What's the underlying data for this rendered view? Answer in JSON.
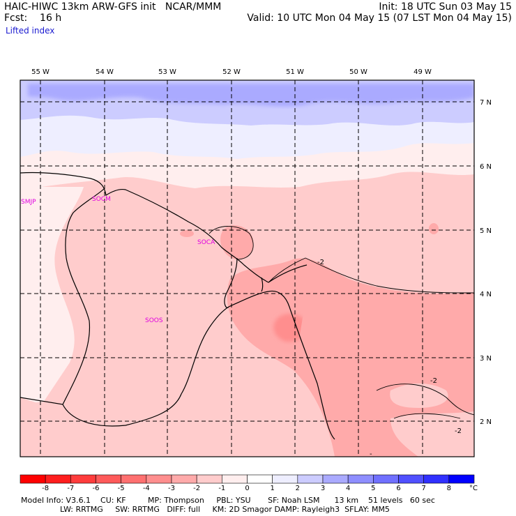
{
  "header": {
    "model_line": "HAIC-HIWC 13km ARW-GFS init   NCAR/MMM",
    "fcst_line": "Fcst:    16 h",
    "field_name": "Lifted index",
    "init_line": "Init: 18 UTC Sun 03 May 15",
    "valid_line": "Valid: 10 UTC Mon 04 May 15 (07 LST Mon 04 May 15)"
  },
  "map": {
    "lon_labels": [
      "55 W",
      "54 W",
      "53 W",
      "52 W",
      "51 W",
      "50 W",
      "49 W"
    ],
    "lat_labels": [
      "7 N",
      "6 N",
      "5 N",
      "4 N",
      "3 N",
      "2 N"
    ],
    "stations": [
      "SMJP",
      "SOCM",
      "SOCA",
      "SOOS"
    ],
    "contour_labels": [
      "-2",
      "-2",
      "-2",
      "-"
    ]
  },
  "colorbar": {
    "ticks": [
      "-8",
      "-7",
      "-6",
      "-5",
      "-4",
      "-3",
      "-2",
      "-1",
      "0",
      "1",
      "2",
      "3",
      "4",
      "5",
      "6",
      "7",
      "8"
    ],
    "unit": "°C",
    "colors": [
      "#ff0000",
      "#ff1e1e",
      "#ff3c3c",
      "#ff5a5a",
      "#ff7070",
      "#ff8e8e",
      "#ffaaaa",
      "#ffcccc",
      "#ffeeee",
      "#eeeeff",
      "#ccccff",
      "#aaaaff",
      "#8e8eff",
      "#7070ff",
      "#5050ff",
      "#3030ff",
      "#0000ff"
    ]
  },
  "footer": {
    "line1": "Model Info: V3.6.1    CU: KF         MP: Thompson     PBL: YSU       SF: Noah LSM      13 km    51 levels   60 sec",
    "line2": "                LW: RRTMG     SW: RRTMG   DIFF: full     KM: 2D Smagor DAMP: Rayleigh3  SFLAY: MM5"
  }
}
